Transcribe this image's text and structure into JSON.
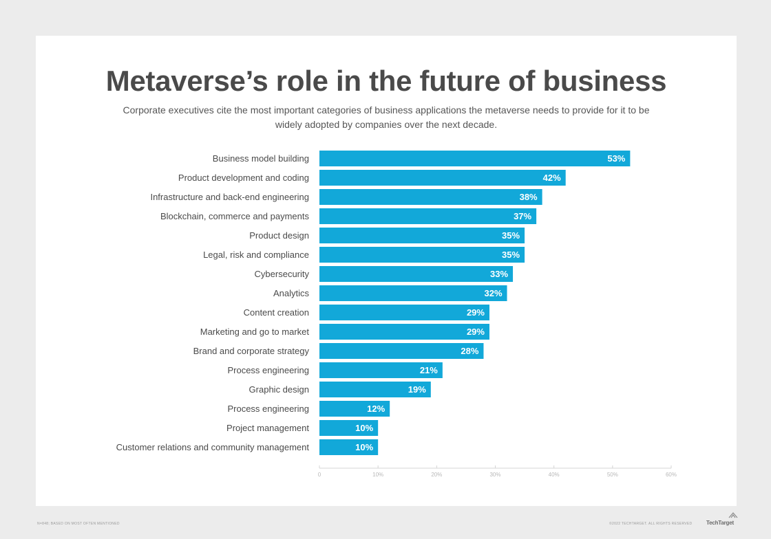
{
  "page": {
    "title": "Metaverse’s role in the future of business",
    "subtitle": "Corporate executives cite the most important categories of business applications the metaverse needs to provide for it to be widely adopted by companies over the next decade.",
    "footer_left": "N=848; BASED ON MOST OFTEN MENTIONED",
    "footer_right": "©2022 TECHTARGET. ALL RIGHTS RESERVED",
    "brand": "TechTarget"
  },
  "colors": {
    "bar": "#12a8d9",
    "axis": "#d4d4d4"
  },
  "chart_data": {
    "type": "bar",
    "orientation": "horizontal",
    "title": "Metaverse’s role in the future of business",
    "xlim": [
      0,
      60
    ],
    "x_ticks": [
      0,
      10,
      20,
      30,
      40,
      50,
      60
    ],
    "x_tick_labels": [
      "0",
      "10%",
      "20%",
      "30%",
      "40%",
      "50%",
      "60%"
    ],
    "categories": [
      "Business model building",
      "Product development and coding",
      "Infrastructure and back-end engineering",
      "Blockchain, commerce and payments",
      "Product design",
      "Legal, risk and compliance",
      "Cybersecurity",
      "Analytics",
      "Content creation",
      "Marketing and go to market",
      "Brand and corporate strategy",
      "Process engineering",
      "Graphic design",
      "Process engineering",
      "Project management",
      "Customer relations and community management"
    ],
    "values": [
      53,
      42,
      38,
      37,
      35,
      35,
      33,
      32,
      29,
      29,
      28,
      21,
      19,
      12,
      10,
      10
    ],
    "value_labels": [
      "53%",
      "42%",
      "38%",
      "37%",
      "35%",
      "35%",
      "33%",
      "32%",
      "29%",
      "29%",
      "28%",
      "21%",
      "19%",
      "12%",
      "10%",
      "10%"
    ]
  }
}
